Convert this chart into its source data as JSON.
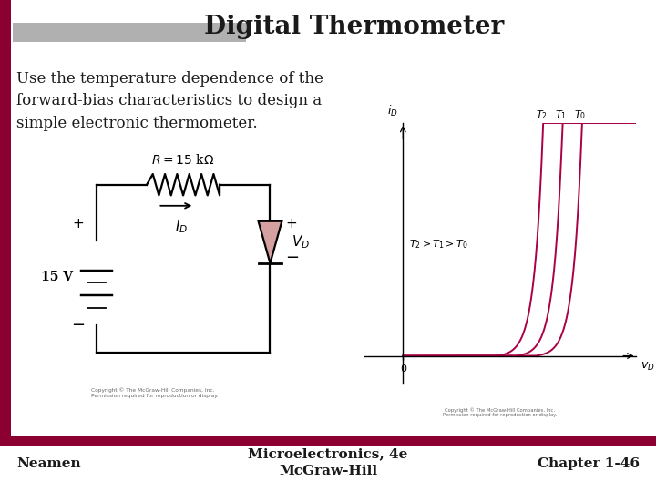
{
  "title": "Digital Thermometer",
  "body_text": "Use the temperature dependence of the\nforward-bias characteristics to design a\nsimple electronic thermometer.",
  "footer_left": "Neamen",
  "footer_center": "Microelectronics, 4e\nMcGraw-Hill",
  "footer_right": "Chapter 1-46",
  "bg_color": "#ffffff",
  "title_color": "#1a1a1a",
  "accent_color": "#8b0030",
  "header_bar_color": "#b0b0b0",
  "curve_color": "#aa0044",
  "graph_annotation": "T₂ > T₁ > T₀",
  "graph_labels_top": [
    "T₂",
    "T₁",
    "T₀"
  ],
  "circuit_label_R": "$R = 15$ k$\\Omega$",
  "circuit_label_V": "15 V",
  "circuit_label_ID": "$I_D$",
  "circuit_label_VD": "$V_D$",
  "diode_color": "#d4a0a0",
  "copyright_text": "Copyright © The McGraw-Hill Companies, Inc.\nPermission required for reproduction or display.",
  "title_fontsize": 20,
  "body_fontsize": 12,
  "footer_fontsize": 11
}
